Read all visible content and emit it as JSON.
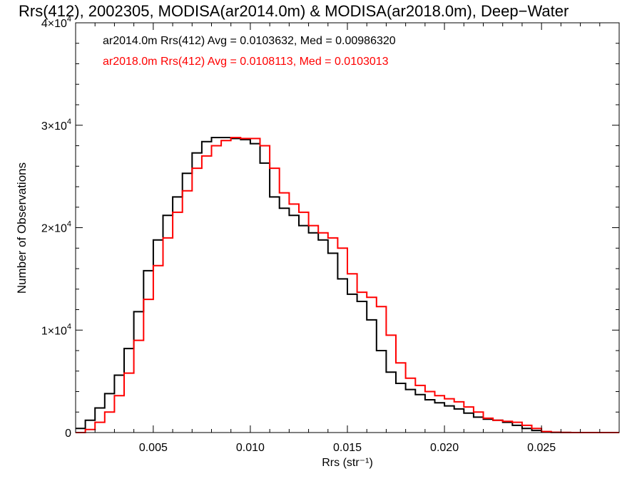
{
  "chart_data": {
    "type": "line",
    "title": "Rrs(412), 2002305, MODISA(ar2014.0m) & MODISA(ar2018.0m), Deep−Water",
    "xlabel": "Rrs (str⁻¹)",
    "ylabel": "Number of Observations",
    "xlim": [
      0.001,
      0.029
    ],
    "ylim": [
      0,
      40000
    ],
    "x_ticks": [
      {
        "value": 0.005,
        "label": "0.005"
      },
      {
        "value": 0.01,
        "label": "0.010"
      },
      {
        "value": 0.015,
        "label": "0.015"
      },
      {
        "value": 0.02,
        "label": "0.020"
      },
      {
        "value": 0.025,
        "label": "0.025"
      }
    ],
    "y_ticks": [
      {
        "value": 0,
        "mantissa": "0",
        "exponent": ""
      },
      {
        "value": 10000,
        "mantissa": "1×10",
        "exponent": "4"
      },
      {
        "value": 20000,
        "mantissa": "2×10",
        "exponent": "4"
      },
      {
        "value": 30000,
        "mantissa": "3×10",
        "exponent": "4"
      },
      {
        "value": 40000,
        "mantissa": "4×10",
        "exponent": "4"
      }
    ],
    "grid": false,
    "legend_position": "top-left",
    "series": [
      {
        "name": "ar2014.0m Rrs(412) Avg = 0.0103632, Med = 0.00986320",
        "color": "#000000",
        "x": [
          0.001,
          0.0015,
          0.002,
          0.0025,
          0.003,
          0.0035,
          0.004,
          0.0045,
          0.005,
          0.0055,
          0.006,
          0.0065,
          0.007,
          0.0075,
          0.008,
          0.0085,
          0.009,
          0.0095,
          0.01,
          0.0105,
          0.011,
          0.0115,
          0.012,
          0.0125,
          0.013,
          0.0135,
          0.014,
          0.0145,
          0.015,
          0.0155,
          0.016,
          0.0165,
          0.017,
          0.0175,
          0.018,
          0.0185,
          0.019,
          0.0195,
          0.02,
          0.0205,
          0.021,
          0.0215,
          0.022,
          0.0225,
          0.023,
          0.0235,
          0.024,
          0.0245,
          0.025,
          0.0255,
          0.026,
          0.0265,
          0.027,
          0.028,
          0.029
        ],
        "y": [
          400,
          1200,
          2400,
          3800,
          5600,
          8200,
          11800,
          15800,
          18800,
          21200,
          23000,
          25300,
          27300,
          28400,
          28800,
          28800,
          28700,
          28600,
          28200,
          26300,
          23000,
          21900,
          21200,
          20200,
          19500,
          18800,
          17500,
          15000,
          13500,
          12800,
          11000,
          8000,
          5900,
          4800,
          4200,
          3700,
          3200,
          2900,
          2600,
          2300,
          1900,
          1500,
          1300,
          1200,
          1000,
          700,
          400,
          200,
          80,
          20,
          5,
          0,
          0,
          0,
          0
        ]
      },
      {
        "name": "ar2018.0m Rrs(412) Avg = 0.0108113, Med = 0.0103013",
        "color": "#ff0000",
        "x": [
          0.001,
          0.0015,
          0.002,
          0.0025,
          0.003,
          0.0035,
          0.004,
          0.0045,
          0.005,
          0.0055,
          0.006,
          0.0065,
          0.007,
          0.0075,
          0.008,
          0.0085,
          0.009,
          0.0095,
          0.01,
          0.0105,
          0.011,
          0.0115,
          0.012,
          0.0125,
          0.013,
          0.0135,
          0.014,
          0.0145,
          0.015,
          0.0155,
          0.016,
          0.0165,
          0.017,
          0.0175,
          0.018,
          0.0185,
          0.019,
          0.0195,
          0.02,
          0.0205,
          0.021,
          0.0215,
          0.022,
          0.0225,
          0.023,
          0.0235,
          0.024,
          0.0245,
          0.025,
          0.0255,
          0.026,
          0.0265,
          0.027,
          0.028,
          0.029
        ],
        "y": [
          0,
          300,
          1000,
          2000,
          3600,
          5800,
          9000,
          13000,
          16300,
          19000,
          21500,
          23600,
          25800,
          27000,
          28000,
          28500,
          28800,
          28700,
          28700,
          28000,
          25800,
          23400,
          22300,
          21500,
          20200,
          19500,
          19000,
          18000,
          15500,
          13700,
          13200,
          12300,
          9500,
          6800,
          5300,
          4600,
          4000,
          3600,
          3300,
          3000,
          2500,
          2000,
          1400,
          1200,
          1100,
          1000,
          700,
          400,
          100,
          30,
          10,
          0,
          0,
          0,
          0
        ]
      }
    ]
  }
}
